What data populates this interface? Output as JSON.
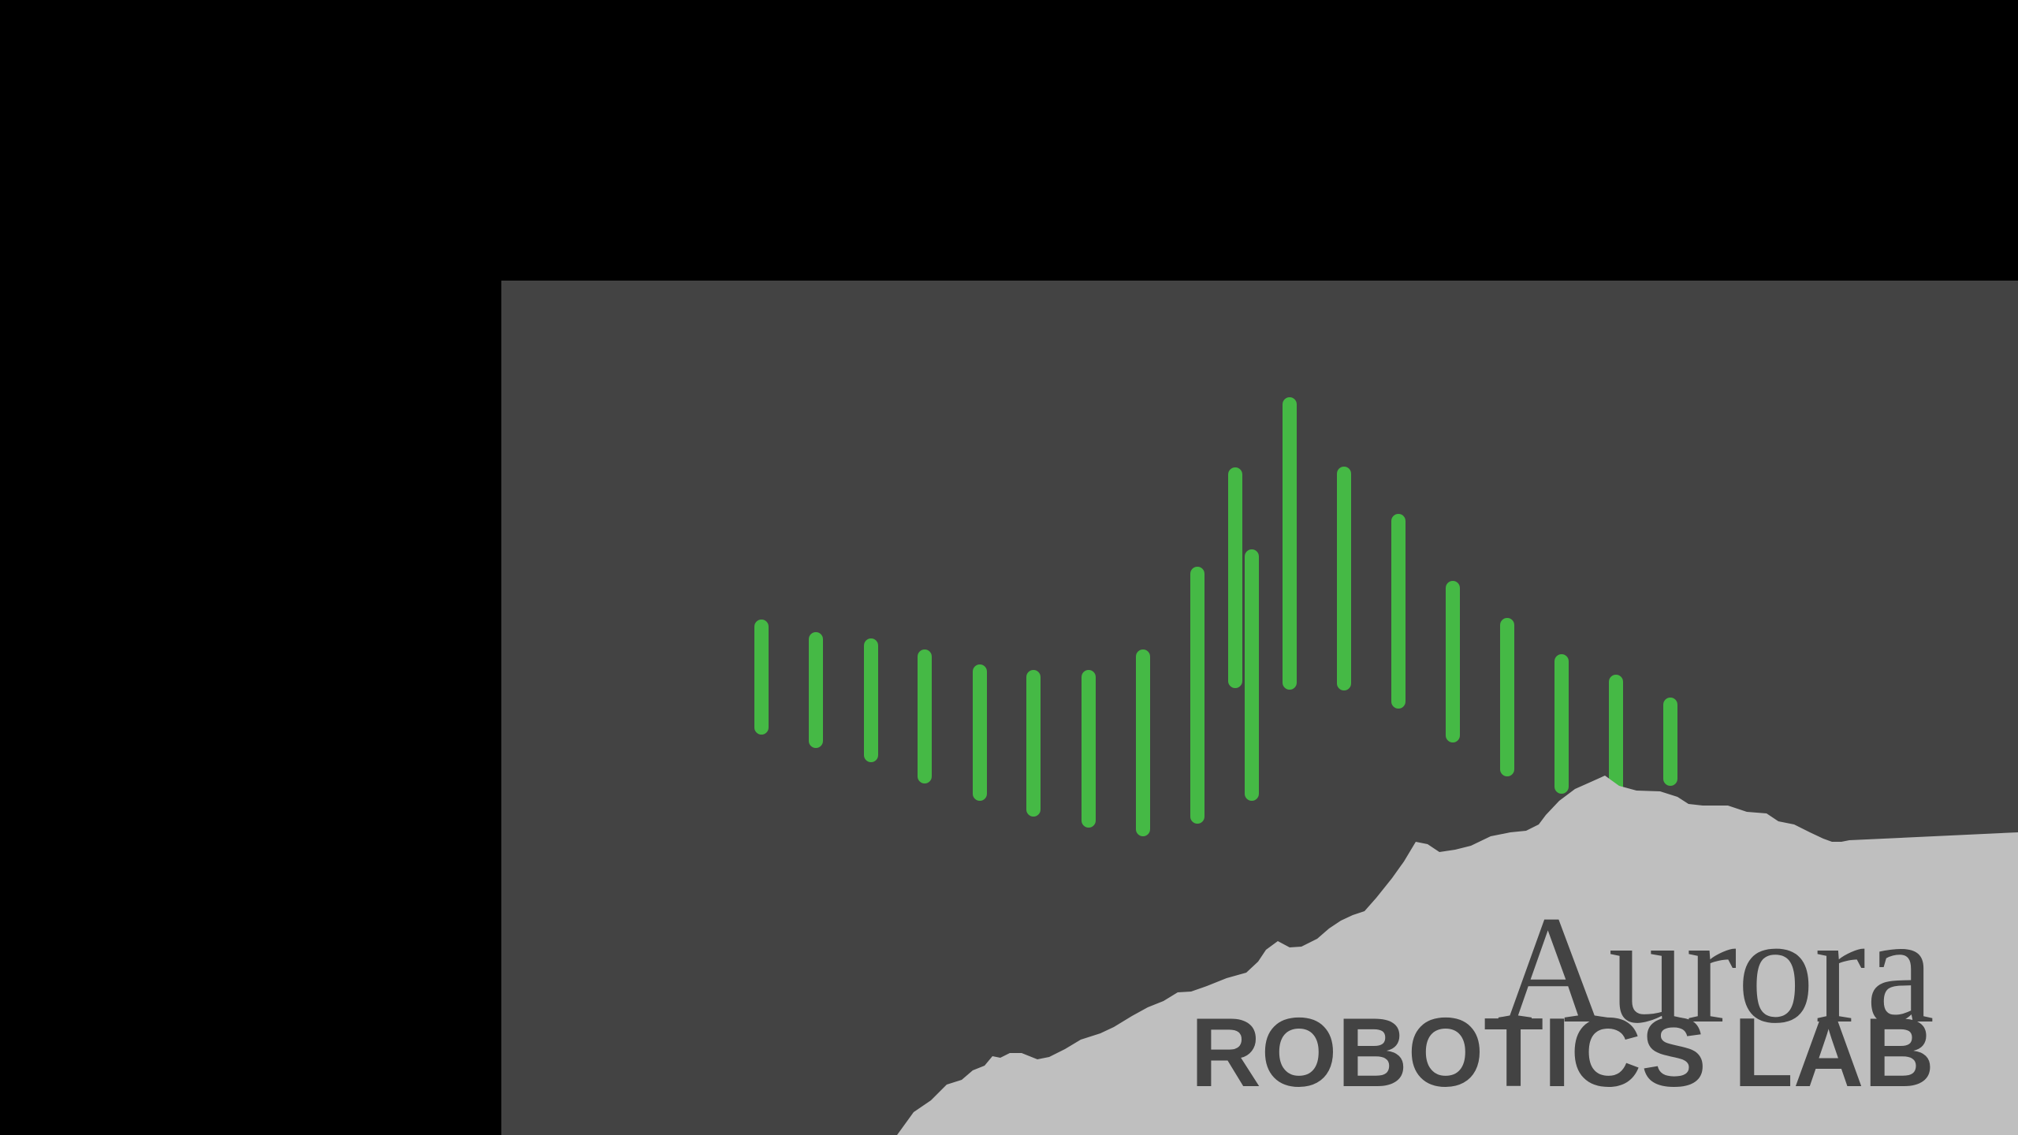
{
  "logo": {
    "name_line1": "Aurora",
    "name_line2": "ROBOTICS LAB",
    "colors": {
      "page_background": "#000000",
      "panel_background": "#434343",
      "waveform_bars": "#45b945",
      "mountain": "#bfbfbf",
      "wordmark_text": "#434343"
    },
    "icons": [
      "audio-waveform-icon",
      "mountain-silhouette-icon"
    ]
  }
}
